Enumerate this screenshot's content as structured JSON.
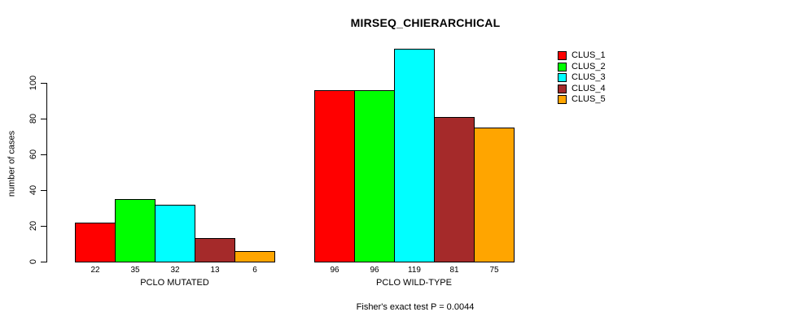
{
  "chart_data": {
    "type": "bar",
    "title": "MIRSEQ_CHIERARCHICAL",
    "ylabel": "number of cases",
    "xlabel": "",
    "caption": "Fisher's exact test P = 0.0044",
    "ylim": [
      0,
      120
    ],
    "yticks": [
      0,
      20,
      40,
      60,
      80,
      100
    ],
    "grid": false,
    "legend_position": "right",
    "categories": [
      "PCLO MUTATED",
      "PCLO WILD-TYPE"
    ],
    "groups": [
      {
        "label": "PCLO MUTATED",
        "values": [
          22,
          35,
          32,
          13,
          6
        ],
        "value_labels": [
          "22",
          "35",
          "32",
          "13",
          "6"
        ]
      },
      {
        "label": "PCLO WILD-TYPE",
        "values": [
          96,
          96,
          119,
          81,
          75
        ],
        "value_labels": [
          "96",
          "96",
          "119",
          "81",
          "75"
        ]
      }
    ],
    "series": [
      {
        "name": "CLUS_1",
        "color": "#FF0000"
      },
      {
        "name": "CLUS_2",
        "color": "#00FF00"
      },
      {
        "name": "CLUS_3",
        "color": "#00FFFF"
      },
      {
        "name": "CLUS_4",
        "color": "#A52A2A"
      },
      {
        "name": "CLUS_5",
        "color": "#FFA500"
      }
    ],
    "colors": {
      "background": "#FFFFFF",
      "axis": "#000000",
      "bar_border": "#000000",
      "text": "#000000"
    }
  }
}
